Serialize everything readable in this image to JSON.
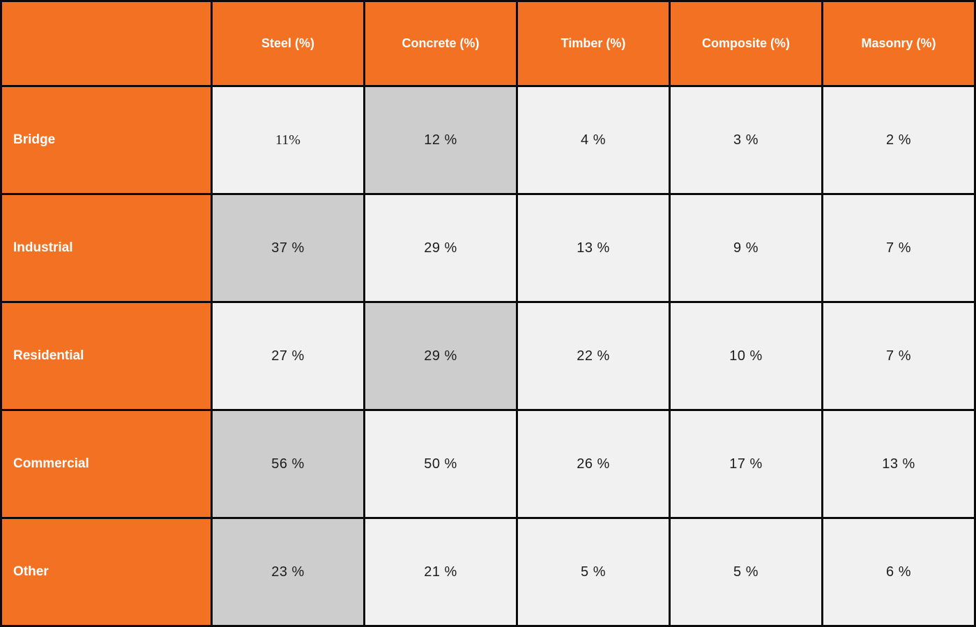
{
  "table": {
    "corner_label": "",
    "columns": [
      "Steel (%)",
      "Concrete (%)",
      "Timber (%)",
      "Composite (%)",
      "Masonry (%)"
    ],
    "rows": [
      {
        "label": "Bridge",
        "cells": [
          "11%",
          "12 %",
          "4 %",
          "3 %",
          "2 %"
        ],
        "highlighted_column": 1
      },
      {
        "label": "Industrial",
        "cells": [
          "37 %",
          "29 %",
          "13 %",
          "9 %",
          "7 %"
        ],
        "highlighted_column": 0
      },
      {
        "label": "Residential",
        "cells": [
          "27 %",
          "29 %",
          "22 %",
          "10 %",
          "7 %"
        ],
        "highlighted_column": 1
      },
      {
        "label": "Commercial",
        "cells": [
          "56 %",
          "50 %",
          "26 %",
          "17 %",
          "13 %"
        ],
        "highlighted_column": 0
      },
      {
        "label": "Other",
        "cells": [
          "23 %",
          "21 %",
          "5 %",
          "5 %",
          "6 %"
        ],
        "highlighted_column": 0
      }
    ]
  },
  "colors": {
    "header_orange": "#f37123",
    "header_text": "#ffffff",
    "cell_light_gray": "#f1f1f1",
    "cell_highlight_gray": "#cdcdcd",
    "cell_text": "#1c1c1c",
    "border_black": "#0b0b0b"
  },
  "chart_data": {
    "type": "table",
    "title": "",
    "columns": [
      "Steel (%)",
      "Concrete (%)",
      "Timber (%)",
      "Composite (%)",
      "Masonry (%)"
    ],
    "rows": [
      "Bridge",
      "Industrial",
      "Residential",
      "Commercial",
      "Other"
    ],
    "values": [
      [
        11,
        12,
        4,
        3,
        2
      ],
      [
        37,
        29,
        13,
        9,
        7
      ],
      [
        27,
        29,
        22,
        10,
        7
      ],
      [
        56,
        50,
        26,
        17,
        13
      ],
      [
        23,
        21,
        5,
        5,
        6
      ]
    ],
    "highlighted_cells_note": "the maximum value cell in each row is shaded darker gray",
    "layout_hints": {
      "header_background": "orange",
      "row_label_background": "orange",
      "grid": "black borders on all cells"
    }
  }
}
